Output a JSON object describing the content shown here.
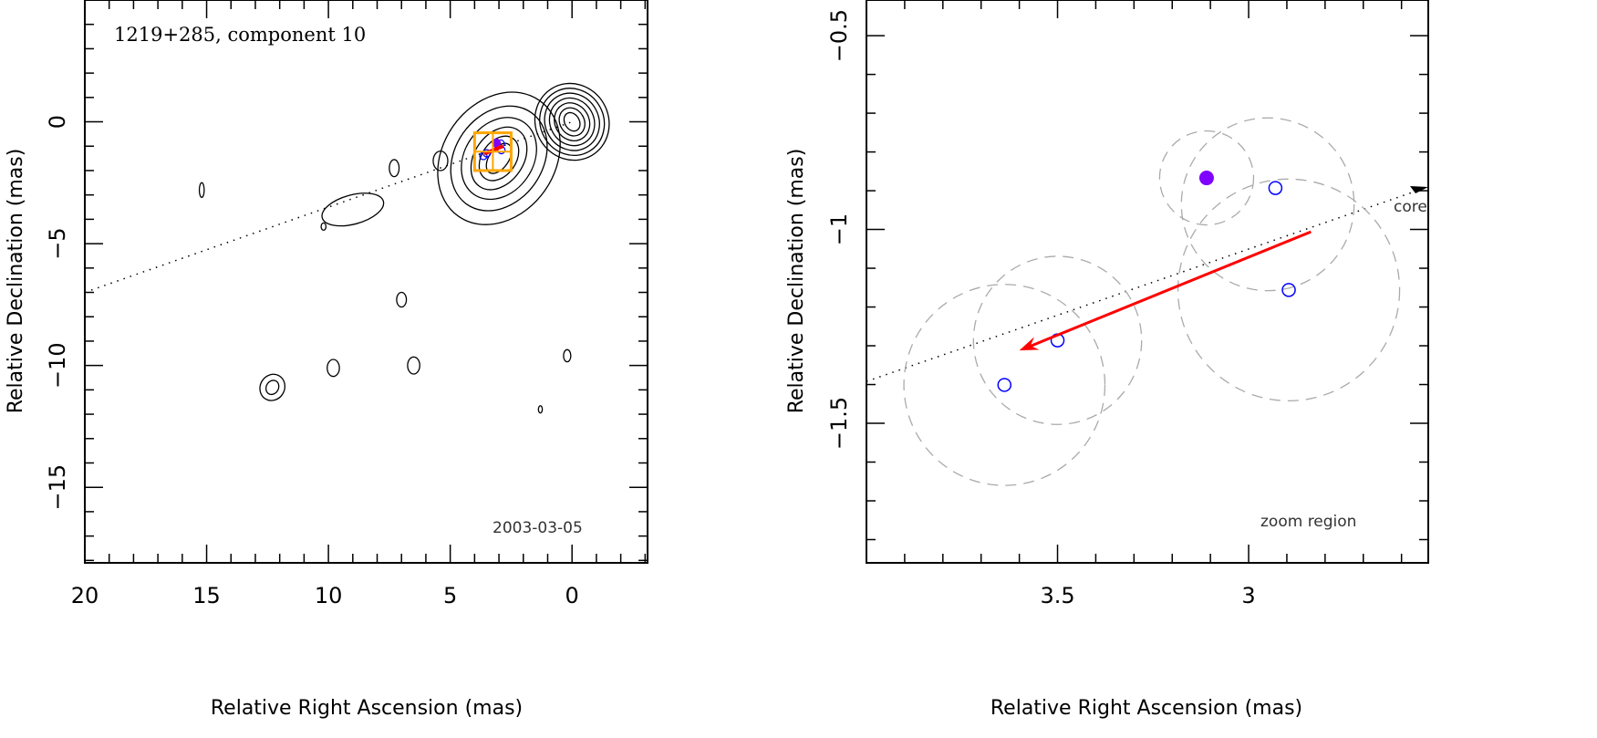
{
  "chart_data": [
    {
      "type": "contour",
      "title": "1219+285, component 10",
      "annotation": "2003-03-05",
      "xlabel": "Relative Right Ascension (mas)",
      "ylabel": "Relative Declination (mas)",
      "xlim": [
        20,
        -3.1
      ],
      "ylim": [
        -18.1,
        5
      ],
      "xticks": [
        20,
        15,
        10,
        5,
        0
      ],
      "yticks": [
        0,
        -5,
        -10,
        -15
      ],
      "grid": false,
      "contours": [
        {
          "ra": 0.0,
          "dec": 0.0,
          "rx": [
            0.3,
            0.5,
            0.7,
            0.9,
            1.1,
            1.3,
            1.5
          ],
          "ry": [
            0.4,
            0.6,
            0.8,
            1.0,
            1.2,
            1.4,
            1.6
          ],
          "angle": -30
        },
        {
          "ra": 3.0,
          "dec": -1.5,
          "rx": [
            0.4,
            0.7,
            1.0,
            1.4,
            1.8,
            2.3
          ],
          "ry": [
            0.7,
            1.0,
            1.4,
            1.8,
            2.3,
            2.9
          ],
          "angle": 35
        },
        {
          "ra": 5.4,
          "dec": -1.6,
          "rx": [
            0.3
          ],
          "ry": [
            0.4
          ],
          "angle": 0
        },
        {
          "ra": 7.3,
          "dec": -1.9,
          "rx": [
            0.2
          ],
          "ry": [
            0.35
          ],
          "angle": 0
        },
        {
          "ra": 9.0,
          "dec": -3.6,
          "rx": [
            1.3
          ],
          "ry": [
            0.6
          ],
          "angle": -15
        },
        {
          "ra": 10.2,
          "dec": -4.3,
          "rx": [
            0.1
          ],
          "ry": [
            0.15
          ],
          "angle": 0
        },
        {
          "ra": 15.2,
          "dec": -2.8,
          "rx": [
            0.1
          ],
          "ry": [
            0.3
          ],
          "angle": 0
        },
        {
          "ra": 7.0,
          "dec": -7.3,
          "rx": [
            0.2
          ],
          "ry": [
            0.3
          ],
          "angle": 0
        },
        {
          "ra": 9.8,
          "dec": -10.1,
          "rx": [
            0.25
          ],
          "ry": [
            0.35
          ],
          "angle": 0
        },
        {
          "ra": 6.5,
          "dec": -10.0,
          "rx": [
            0.25
          ],
          "ry": [
            0.35
          ],
          "angle": 0
        },
        {
          "ra": 12.3,
          "dec": -10.9,
          "rx": [
            0.25,
            0.5
          ],
          "ry": [
            0.3,
            0.55
          ],
          "angle": 30
        },
        {
          "ra": 0.2,
          "dec": -9.6,
          "rx": [
            0.15
          ],
          "ry": [
            0.25
          ],
          "angle": 0
        },
        {
          "ra": 1.3,
          "dec": -11.8,
          "rx": [
            0.08
          ],
          "ry": [
            0.15
          ],
          "angle": 0
        }
      ],
      "core_direction_line": [
        [
          20,
          -7
        ],
        [
          0,
          0
        ]
      ],
      "zoom_box": {
        "ra": [
          4.0,
          2.5
        ],
        "dec": [
          -0.45,
          -2.0
        ]
      },
      "components_blue": [
        [
          2.93,
          -0.89
        ],
        [
          2.9,
          -1.16
        ],
        [
          3.5,
          -1.29
        ],
        [
          3.64,
          -1.4
        ]
      ],
      "component_purple": [
        3.11,
        -0.87
      ],
      "motion_arrow": [
        [
          2.84,
          -1.0
        ],
        [
          3.6,
          -1.31
        ]
      ]
    },
    {
      "type": "scatter",
      "xlabel": "Relative Right Ascension (mas)",
      "ylabel": "Relative Declination (mas)",
      "xlim": [
        4.0,
        2.53
      ],
      "ylim": [
        -1.86,
        -0.408
      ],
      "xticks": [
        3.5,
        3
      ],
      "xtick_labels": [
        "3.5",
        "3"
      ],
      "yticks": [
        -0.5,
        -1,
        -1.5
      ],
      "ytick_labels": [
        "−0.5",
        "−1",
        "−1.5"
      ],
      "grid": false,
      "core_label": "core",
      "region_label": "zoom region",
      "purple_point": {
        "ra": 3.11,
        "dec": -0.867,
        "err": 0.123,
        "color": "#7f00ff"
      },
      "blue_points": [
        {
          "ra": 2.93,
          "dec": -0.893,
          "err_center": [
            2.95,
            -0.935
          ],
          "err": 0.226
        },
        {
          "ra": 2.895,
          "dec": -1.156,
          "err_center": [
            2.895,
            -1.156
          ],
          "err": 0.29
        },
        {
          "ra": 3.5,
          "dec": -1.286,
          "err_center": [
            3.5,
            -1.286
          ],
          "err": 0.22
        },
        {
          "ra": 3.639,
          "dec": -1.401,
          "err_center": [
            3.639,
            -1.401
          ],
          "err": 0.263
        }
      ],
      "blue_color": "#0000ff",
      "arrow": {
        "from": [
          2.837,
          -1.006
        ],
        "to": [
          3.6,
          -1.312
        ],
        "color": "#ff0000"
      },
      "core_direction_line": [
        [
          4.0,
          -1.392
        ],
        [
          2.53,
          -0.89
        ]
      ]
    }
  ],
  "left": {
    "title": "1219+285, component 10",
    "date": "2003-03-05",
    "xlabel": "Relative Right Ascension (mas)",
    "ylabel": "Relative Declination (mas)",
    "xtick_labels": [
      "20",
      "15",
      "10",
      "5",
      "0"
    ],
    "ytick_labels": [
      "0",
      "−5",
      "−10",
      "−15"
    ]
  },
  "right": {
    "xlabel": "Relative Right Ascension (mas)",
    "ylabel": "Relative Declination (mas)",
    "core": "core",
    "region": "zoom region"
  }
}
